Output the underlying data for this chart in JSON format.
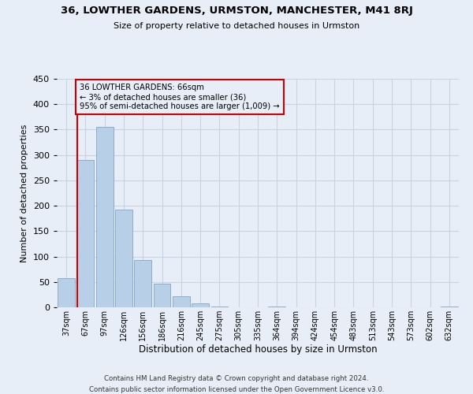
{
  "title": "36, LOWTHER GARDENS, URMSTON, MANCHESTER, M41 8RJ",
  "subtitle": "Size of property relative to detached houses in Urmston",
  "xlabel": "Distribution of detached houses by size in Urmston",
  "ylabel": "Number of detached properties",
  "bar_labels": [
    "37sqm",
    "67sqm",
    "97sqm",
    "126sqm",
    "156sqm",
    "186sqm",
    "216sqm",
    "245sqm",
    "275sqm",
    "305sqm",
    "335sqm",
    "364sqm",
    "394sqm",
    "424sqm",
    "454sqm",
    "483sqm",
    "513sqm",
    "543sqm",
    "573sqm",
    "602sqm",
    "632sqm"
  ],
  "bar_heights": [
    58,
    290,
    355,
    192,
    93,
    46,
    22,
    8,
    2,
    0,
    0,
    2,
    0,
    0,
    0,
    0,
    0,
    0,
    0,
    0,
    2
  ],
  "bar_color": "#b8cfe8",
  "bar_edgecolor": "#8aaed0",
  "vline_color": "#cc0000",
  "annotation_text": "36 LOWTHER GARDENS: 66sqm\n← 3% of detached houses are smaller (36)\n95% of semi-detached houses are larger (1,009) →",
  "annotation_box_edgecolor": "#cc0000",
  "ylim": [
    0,
    450
  ],
  "yticks": [
    0,
    50,
    100,
    150,
    200,
    250,
    300,
    350,
    400,
    450
  ],
  "grid_color": "#c8d4e4",
  "bg_color": "#e8eef8",
  "footer_line1": "Contains HM Land Registry data © Crown copyright and database right 2024.",
  "footer_line2": "Contains public sector information licensed under the Open Government Licence v3.0."
}
